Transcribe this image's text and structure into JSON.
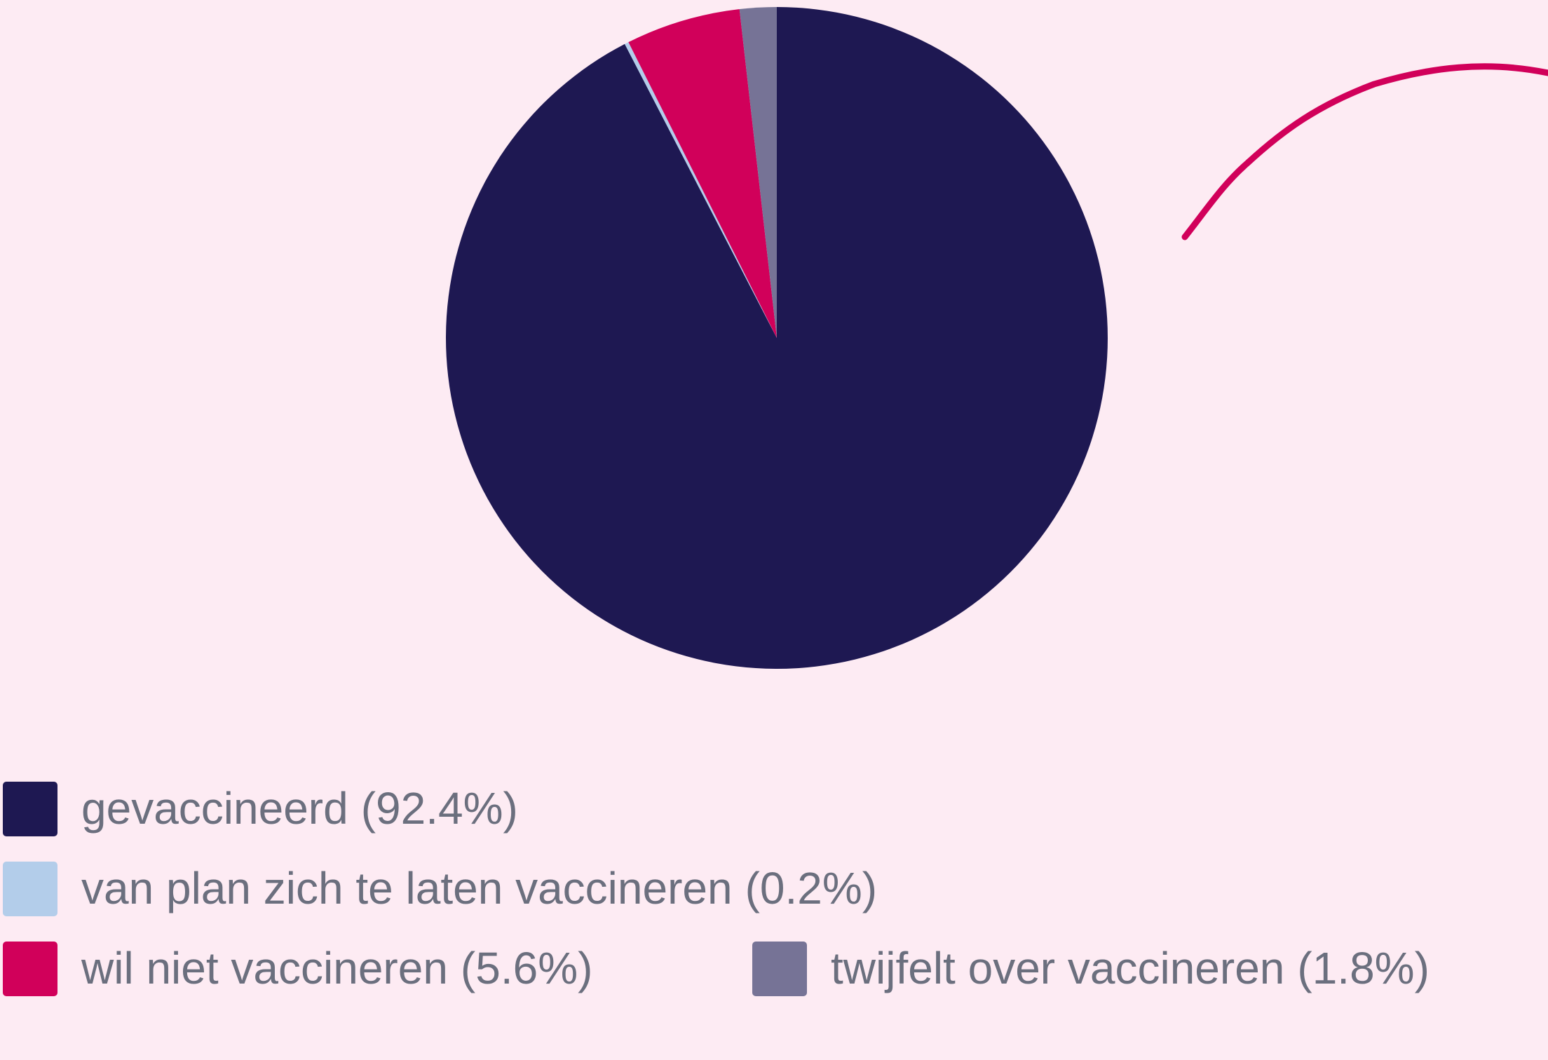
{
  "chart_data": {
    "type": "pie",
    "categories": [
      "gevaccineerd",
      "van plan zich te laten vaccineren",
      "wil niet vaccineren",
      "twijfelt over vaccineren"
    ],
    "values": [
      92.4,
      0.2,
      5.6,
      1.8
    ],
    "value_labels": [
      "(92.4%)",
      "(0.2%)",
      "(5.6%)",
      "(1.8%)"
    ],
    "colors": [
      "#1e1852",
      "#b3cdea",
      "#d1005a",
      "#767396"
    ]
  }
}
